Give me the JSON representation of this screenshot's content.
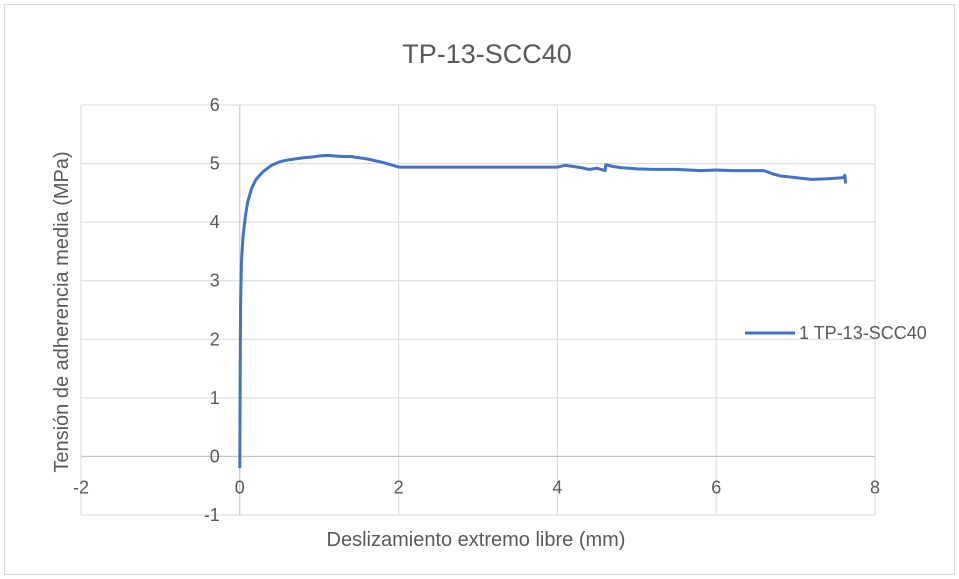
{
  "chart_data": {
    "type": "line",
    "title": "TP-13-SCC40",
    "xlabel": "Deslizamiento extremo libre (mm)",
    "ylabel": "Tensión de adherencia media (MPa)",
    "xlim": [
      -2,
      8
    ],
    "ylim": [
      -1,
      6
    ],
    "xticks": [
      -2,
      0,
      2,
      4,
      6,
      8
    ],
    "yticks": [
      -1,
      0,
      1,
      2,
      3,
      4,
      5,
      6
    ],
    "xtick_labels": [
      "-2",
      "0",
      "2",
      "4",
      "6",
      "8"
    ],
    "ytick_labels": [
      "-1",
      "0",
      "1",
      "2",
      "3",
      "4",
      "5",
      "6"
    ],
    "grid": true,
    "legend_position": "right",
    "series": [
      {
        "name": "1 TP-13-SCC40",
        "color": "#4472c4",
        "x": [
          0,
          0.005,
          0.01,
          0.02,
          0.04,
          0.07,
          0.1,
          0.15,
          0.2,
          0.25,
          0.3,
          0.4,
          0.5,
          0.6,
          0.7,
          0.8,
          0.9,
          1.0,
          1.1,
          1.2,
          1.3,
          1.4,
          1.5,
          1.6,
          1.7,
          1.8,
          1.9,
          2.0,
          3.0,
          4.0,
          4.1,
          4.2,
          4.3,
          4.4,
          4.5,
          4.6,
          4.61,
          4.7,
          4.8,
          5.0,
          5.2,
          5.5,
          5.8,
          6.0,
          6.2,
          6.4,
          6.6,
          6.7,
          6.8,
          7.0,
          7.2,
          7.4,
          7.5,
          7.6,
          7.62,
          7.63
        ],
        "y": [
          -0.2,
          1.5,
          2.6,
          3.3,
          3.75,
          4.1,
          4.35,
          4.58,
          4.72,
          4.8,
          4.87,
          4.97,
          5.03,
          5.06,
          5.08,
          5.1,
          5.11,
          5.13,
          5.14,
          5.13,
          5.12,
          5.12,
          5.1,
          5.08,
          5.05,
          5.02,
          4.98,
          4.94,
          4.94,
          4.94,
          4.97,
          4.95,
          4.93,
          4.9,
          4.92,
          4.88,
          4.98,
          4.95,
          4.93,
          4.91,
          4.9,
          4.9,
          4.88,
          4.89,
          4.88,
          4.88,
          4.88,
          4.83,
          4.79,
          4.76,
          4.73,
          4.74,
          4.75,
          4.76,
          4.8,
          4.66
        ]
      }
    ]
  }
}
